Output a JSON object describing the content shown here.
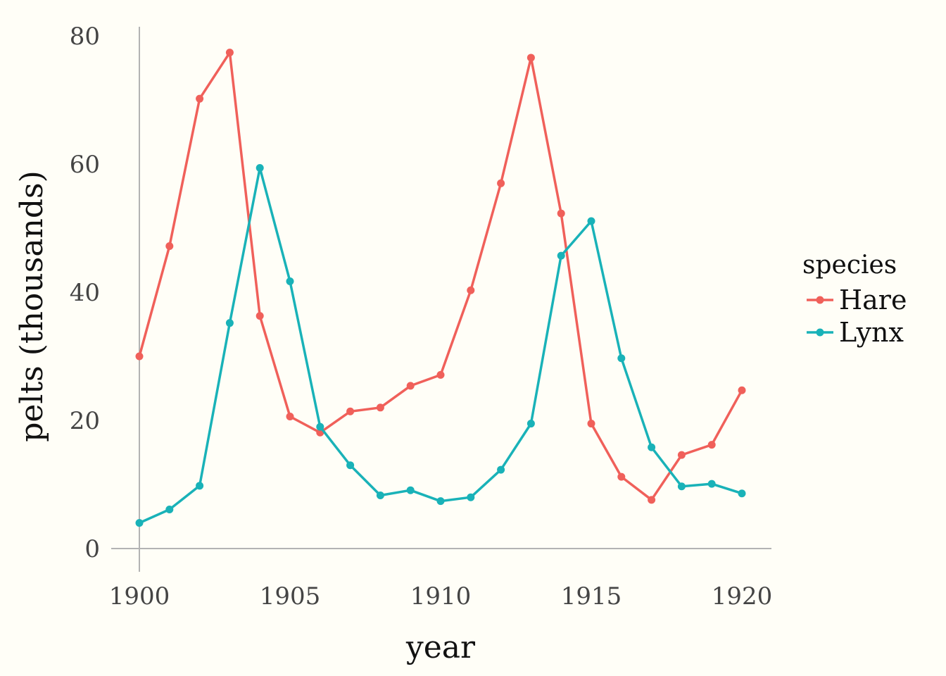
{
  "chart_data": {
    "type": "line",
    "xlabel": "year",
    "ylabel": "pelts (thousands)",
    "xlim": [
      1900,
      1920
    ],
    "ylim": [
      0,
      80
    ],
    "x_ticks": [
      1900,
      1905,
      1910,
      1915,
      1920
    ],
    "y_ticks": [
      0,
      20,
      40,
      60,
      80
    ],
    "grid": false,
    "legend": {
      "title": "species",
      "placement": "right"
    },
    "x": [
      1900,
      1901,
      1902,
      1903,
      1904,
      1905,
      1906,
      1907,
      1908,
      1909,
      1910,
      1911,
      1912,
      1913,
      1914,
      1915,
      1916,
      1917,
      1918,
      1919,
      1920
    ],
    "series": [
      {
        "name": "Hare",
        "color": "#f0605a",
        "values": [
          30,
          47.2,
          70.2,
          77.4,
          36.3,
          20.6,
          18.1,
          21.4,
          22,
          25.4,
          27.1,
          40.3,
          57,
          76.6,
          52.3,
          19.5,
          11.2,
          7.6,
          14.6,
          16.2,
          24.7
        ]
      },
      {
        "name": "Lynx",
        "color": "#19b2b8",
        "values": [
          4,
          6.1,
          9.8,
          35.2,
          59.4,
          41.7,
          19,
          13,
          8.3,
          9.1,
          7.4,
          8,
          12.3,
          19.5,
          45.7,
          51.1,
          29.7,
          15.8,
          9.7,
          10.1,
          8.6
        ]
      }
    ]
  },
  "styles": {
    "axis_color": "#b3b3b3",
    "background": "#fffef7"
  }
}
